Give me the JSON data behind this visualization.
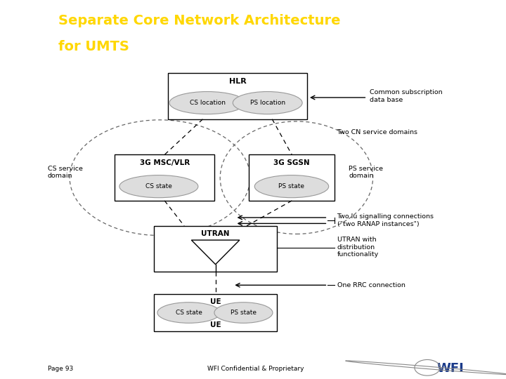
{
  "title_line1": "Separate Core Network Architecture",
  "title_line2": "for UMTS",
  "title_color": "#FFD700",
  "header_bg": "#3a3a9e",
  "left_sidebar_bg": "#12126e",
  "body_bg": "#FFFFFF",
  "page_label": "Page 93",
  "confidential": "WFI Confidential & Proprietary",
  "annotations": {
    "common_subscription": "Common subscription\ndata base",
    "two_cn": "Two CN service domains",
    "cs_service": "CS service\ndomain",
    "ps_service": "PS service\ndomain",
    "two_iu": "Two Iu signalling connections\n(\"two RANAP instances\")",
    "utran_dist": "UTRAN with\ndistribution\nfunctionality",
    "one_rrc": "One RRC connection"
  }
}
